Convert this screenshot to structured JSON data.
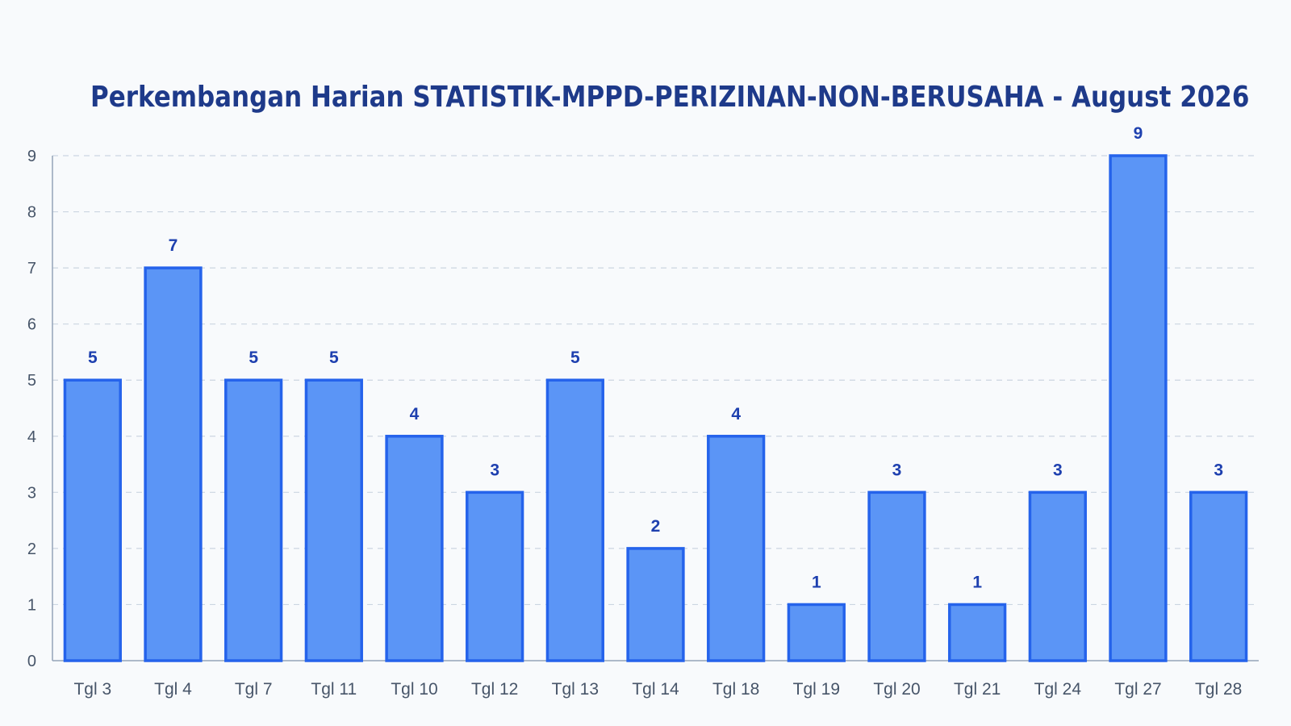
{
  "chart_data": {
    "type": "bar",
    "title": "Perkembangan Harian STATISTIK-MPPD-PERIZINAN-NON-BERUSAHA - August 2026",
    "categories": [
      "Tgl 3",
      "Tgl 4",
      "Tgl 7",
      "Tgl 11",
      "Tgl 10",
      "Tgl 12",
      "Tgl 13",
      "Tgl 14",
      "Tgl 18",
      "Tgl 19",
      "Tgl 20",
      "Tgl 21",
      "Tgl 24",
      "Tgl 27",
      "Tgl 28"
    ],
    "values": [
      5,
      7,
      5,
      5,
      4,
      3,
      5,
      2,
      4,
      1,
      3,
      1,
      3,
      9,
      3
    ],
    "ylim": [
      0,
      9
    ],
    "yticks": [
      0,
      1,
      2,
      3,
      4,
      5,
      6,
      7,
      8,
      9
    ],
    "grid": true,
    "legend": "none",
    "colors": {
      "bar_fill": "#5b95f6",
      "bar_edge": "#2563eb",
      "title": "#1e3a8a",
      "data_label": "#1e40af"
    }
  }
}
